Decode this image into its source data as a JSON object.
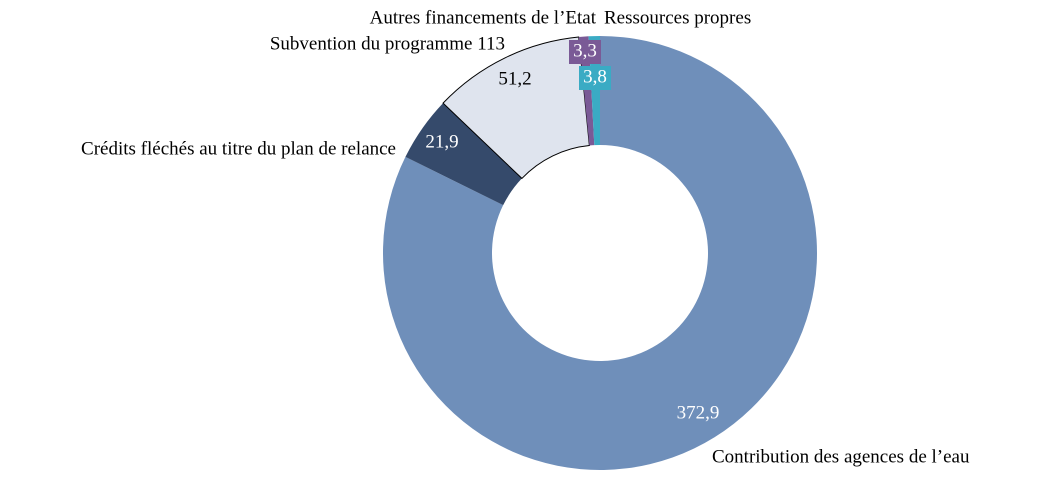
{
  "chart_data": {
    "type": "donut",
    "categories": [
      "Contribution des agences de l’eau",
      "Crédits fléchés au titre du plan de relance",
      "Subvention du programme 113",
      "Autres financements de l’Etat",
      "Ressources propres"
    ],
    "values": [
      372.9,
      21.9,
      51.2,
      3.3,
      3.8
    ],
    "value_labels": [
      "372,9",
      "21,9",
      "51,2",
      "3,3",
      "3,8"
    ],
    "colors": [
      "#6f8fba",
      "#354a6b",
      "#dfe4ee",
      "#7a5a96",
      "#3aabc4"
    ]
  }
}
